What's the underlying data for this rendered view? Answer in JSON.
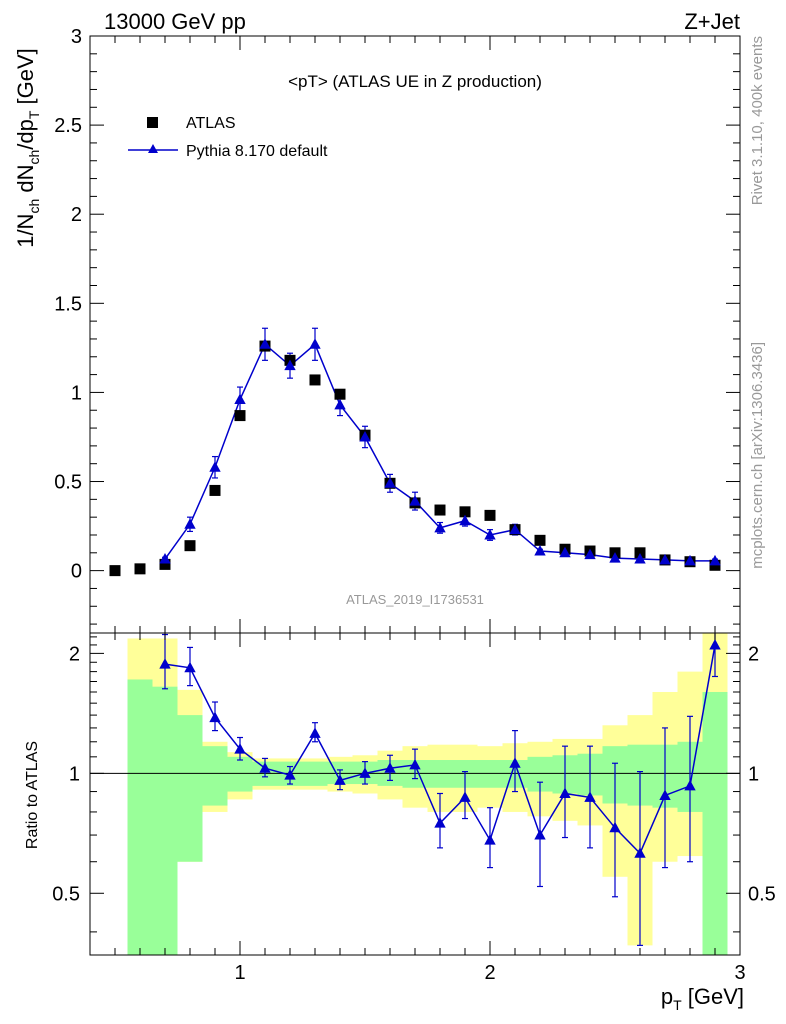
{
  "header": {
    "energy_label": "13000 GeV pp",
    "process_label": "Z+Jet"
  },
  "side_labels": {
    "rivet": "Rivet 3.1.10,  400k events",
    "mcplots": "mcplots.cern.ch [arXiv:1306.3436]"
  },
  "colors": {
    "mc": "#0000cc",
    "data": "#000000",
    "band_inner": "#99ff99",
    "band_outer": "#ffff99",
    "watermark": "#999999"
  },
  "chart_data": [
    {
      "type": "scatter",
      "title": "<pT> (ATLAS UE in Z production)",
      "analysis_id": "ATLAS_2019_I1736531",
      "ylabel": "1/N_ch dN_ch/dp_T [GeV]",
      "xlim": [
        0.4,
        3.0
      ],
      "ylim": [
        -0.35,
        3.0
      ],
      "yticks_major": [
        0,
        0.5,
        1,
        1.5,
        2,
        2.5,
        3
      ],
      "ytick_labels": [
        "0",
        "0.5",
        "1",
        "1.5",
        "2",
        "2.5",
        "3"
      ],
      "legend": {
        "placement": "top-left"
      },
      "series": [
        {
          "name": "ATLAS",
          "marker": "square",
          "x": [
            0.5,
            0.6,
            0.7,
            0.8,
            0.9,
            1.0,
            1.1,
            1.2,
            1.3,
            1.4,
            1.5,
            1.6,
            1.7,
            1.8,
            1.9,
            2.0,
            2.1,
            2.2,
            2.3,
            2.4,
            2.5,
            2.6,
            2.7,
            2.8,
            2.9
          ],
          "y": [
            0.0,
            0.01,
            0.035,
            0.14,
            0.45,
            0.87,
            1.26,
            1.18,
            1.07,
            0.99,
            0.76,
            0.49,
            0.38,
            0.34,
            0.33,
            0.31,
            0.23,
            0.17,
            0.12,
            0.11,
            0.1,
            0.1,
            0.06,
            0.05,
            0.03
          ]
        },
        {
          "name": "Pythia 8.170 default",
          "marker": "triangle",
          "x": [
            0.7,
            0.8,
            0.9,
            1.0,
            1.1,
            1.2,
            1.3,
            1.4,
            1.5,
            1.6,
            1.7,
            1.8,
            1.9,
            2.0,
            2.1,
            2.2,
            2.3,
            2.4,
            2.5,
            2.6,
            2.7,
            2.8,
            2.9
          ],
          "y": [
            0.065,
            0.26,
            0.58,
            0.96,
            1.27,
            1.15,
            1.27,
            0.93,
            0.75,
            0.49,
            0.39,
            0.24,
            0.28,
            0.2,
            0.23,
            0.11,
            0.1,
            0.09,
            0.07,
            0.065,
            0.06,
            0.055,
            0.055
          ],
          "yerr": [
            0.01,
            0.04,
            0.06,
            0.07,
            0.09,
            0.07,
            0.09,
            0.06,
            0.06,
            0.05,
            0.05,
            0.03,
            0.03,
            0.03,
            0.03,
            0.01,
            0.01,
            0.01,
            0.01,
            0.01,
            0.01,
            0.01,
            0.01
          ]
        }
      ]
    },
    {
      "type": "line",
      "ylabel": "Ratio to ATLAS",
      "xlabel": "p_T [GeV]",
      "xlim": [
        0.4,
        3.0
      ],
      "ylim": [
        0.35,
        2.25
      ],
      "xticks_major": [
        1,
        2,
        3
      ],
      "xtick_labels": [
        "1",
        "2",
        "3"
      ],
      "yticks_labeled": [
        0.5,
        1,
        2
      ],
      "ytick_labels": [
        "0.5",
        "1",
        "2"
      ],
      "reference_line": 1,
      "bins": [
        {
          "lo": 0.55,
          "hi": 0.65,
          "in_lo": 0.0,
          "in_hi": 1.72,
          "out_lo": 0.0,
          "out_hi": 2.18
        },
        {
          "lo": 0.65,
          "hi": 0.75,
          "in_lo": 0.0,
          "in_hi": 1.65,
          "out_lo": 0.0,
          "out_hi": 2.18
        },
        {
          "lo": 0.75,
          "hi": 0.85,
          "in_lo": 0.6,
          "in_hi": 1.4,
          "out_lo": 0.6,
          "out_hi": 1.62
        },
        {
          "lo": 0.85,
          "hi": 0.95,
          "in_lo": 0.83,
          "in_hi": 1.17,
          "out_lo": 0.8,
          "out_hi": 1.2
        },
        {
          "lo": 0.95,
          "hi": 1.05,
          "in_lo": 0.9,
          "in_hi": 1.1,
          "out_lo": 0.86,
          "out_hi": 1.13
        },
        {
          "lo": 1.05,
          "hi": 1.15,
          "in_lo": 0.93,
          "in_hi": 1.07,
          "out_lo": 0.91,
          "out_hi": 1.09
        },
        {
          "lo": 1.15,
          "hi": 1.25,
          "in_lo": 0.93,
          "in_hi": 1.07,
          "out_lo": 0.91,
          "out_hi": 1.09
        },
        {
          "lo": 1.25,
          "hi": 1.35,
          "in_lo": 0.93,
          "in_hi": 1.07,
          "out_lo": 0.91,
          "out_hi": 1.09
        },
        {
          "lo": 1.35,
          "hi": 1.45,
          "in_lo": 0.94,
          "in_hi": 1.07,
          "out_lo": 0.9,
          "out_hi": 1.1
        },
        {
          "lo": 1.45,
          "hi": 1.55,
          "in_lo": 0.94,
          "in_hi": 1.07,
          "out_lo": 0.89,
          "out_hi": 1.11
        },
        {
          "lo": 1.55,
          "hi": 1.65,
          "in_lo": 0.93,
          "in_hi": 1.08,
          "out_lo": 0.86,
          "out_hi": 1.14
        },
        {
          "lo": 1.65,
          "hi": 1.75,
          "in_lo": 0.92,
          "in_hi": 1.08,
          "out_lo": 0.82,
          "out_hi": 1.17
        },
        {
          "lo": 1.75,
          "hi": 1.85,
          "in_lo": 0.92,
          "in_hi": 1.08,
          "out_lo": 0.8,
          "out_hi": 1.18
        },
        {
          "lo": 1.85,
          "hi": 1.95,
          "in_lo": 0.92,
          "in_hi": 1.08,
          "out_lo": 0.8,
          "out_hi": 1.18
        },
        {
          "lo": 1.95,
          "hi": 2.05,
          "in_lo": 0.92,
          "in_hi": 1.08,
          "out_lo": 0.82,
          "out_hi": 1.17
        },
        {
          "lo": 2.05,
          "hi": 2.15,
          "in_lo": 0.92,
          "in_hi": 1.08,
          "out_lo": 0.8,
          "out_hi": 1.19
        },
        {
          "lo": 2.15,
          "hi": 2.25,
          "in_lo": 0.9,
          "in_hi": 1.1,
          "out_lo": 0.78,
          "out_hi": 1.2
        },
        {
          "lo": 2.25,
          "hi": 2.35,
          "in_lo": 0.89,
          "in_hi": 1.11,
          "out_lo": 0.76,
          "out_hi": 1.22
        },
        {
          "lo": 2.35,
          "hi": 2.45,
          "in_lo": 0.88,
          "in_hi": 1.12,
          "out_lo": 0.74,
          "out_hi": 1.22
        },
        {
          "lo": 2.45,
          "hi": 2.55,
          "in_lo": 0.84,
          "in_hi": 1.17,
          "out_lo": 0.55,
          "out_hi": 1.32
        },
        {
          "lo": 2.55,
          "hi": 2.65,
          "in_lo": 0.83,
          "in_hi": 1.18,
          "out_lo": 0.37,
          "out_hi": 1.4
        },
        {
          "lo": 2.65,
          "hi": 2.75,
          "in_lo": 0.82,
          "in_hi": 1.18,
          "out_lo": 0.6,
          "out_hi": 1.6
        },
        {
          "lo": 2.75,
          "hi": 2.85,
          "in_lo": 0.8,
          "in_hi": 1.2,
          "out_lo": 0.62,
          "out_hi": 1.8
        },
        {
          "lo": 2.85,
          "hi": 2.95,
          "in_lo": 0.0,
          "in_hi": 1.6,
          "out_lo": 0.0,
          "out_hi": 2.25
        }
      ],
      "series": [
        {
          "name": "Pythia 8.170 default",
          "marker": "triangle",
          "x": [
            0.7,
            0.8,
            0.9,
            1.0,
            1.1,
            1.2,
            1.3,
            1.4,
            1.5,
            1.6,
            1.7,
            1.8,
            1.9,
            2.0,
            2.1,
            2.2,
            2.3,
            2.4,
            2.5,
            2.6,
            2.7,
            2.8,
            2.9
          ],
          "y": [
            1.88,
            1.84,
            1.38,
            1.15,
            1.03,
            0.99,
            1.26,
            0.96,
            1.0,
            1.03,
            1.05,
            0.75,
            0.87,
            0.68,
            1.06,
            0.7,
            0.89,
            0.87,
            0.73,
            0.63,
            0.88,
            0.93,
            2.1
          ],
          "err_lo": [
            0.25,
            0.18,
            0.1,
            0.07,
            0.05,
            0.05,
            0.06,
            0.05,
            0.06,
            0.07,
            0.08,
            0.1,
            0.1,
            0.1,
            0.16,
            0.18,
            0.2,
            0.22,
            0.24,
            0.26,
            0.3,
            0.33,
            0.35
          ],
          "err_hi": [
            0.35,
            0.23,
            0.13,
            0.08,
            0.06,
            0.05,
            0.08,
            0.06,
            0.07,
            0.08,
            0.1,
            0.14,
            0.14,
            0.14,
            0.22,
            0.25,
            0.28,
            0.3,
            0.33,
            0.38,
            0.42,
            0.46,
            0.35
          ]
        }
      ]
    }
  ]
}
